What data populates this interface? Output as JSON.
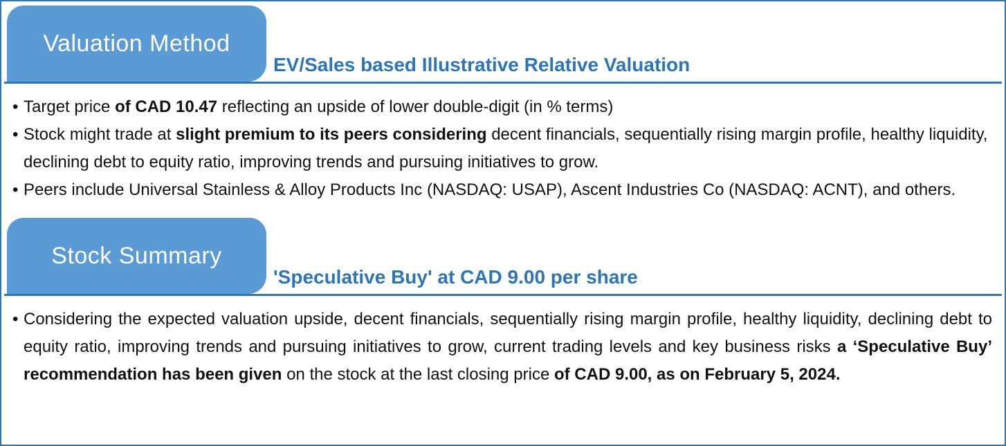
{
  "ui": {
    "bullet_char": "•"
  },
  "colors": {
    "tab_blue": "#5b9bd5",
    "heading_blue": "#2e75b6",
    "border_blue": "#2e75b6",
    "body_text": "#111111"
  },
  "sections": {
    "valuation": {
      "tab_label": "Valuation Method",
      "subtitle": "EV/Sales based Illustrative Relative Valuation",
      "bullets": {
        "b1": {
          "s1": "Target price ",
          "s2": "of CAD 10.47",
          "s3": " reflecting an upside of lower double-digit (in % terms)"
        },
        "b2": {
          "s1": "Stock might trade at ",
          "s2": "slight premium to its peers considering",
          "s3": " decent financials, sequentially rising margin profile, healthy liquidity, declining debt to equity ratio, improving trends and pursuing initiatives to grow."
        },
        "b3": {
          "s1": "Peers include Universal Stainless & Alloy Products Inc (NASDAQ: USAP), Ascent Industries Co (NASDAQ: ACNT), and others."
        }
      }
    },
    "summary": {
      "tab_label": "Stock Summary",
      "subtitle": "'Speculative Buy' at CAD 9.00 per share",
      "bullets": {
        "b1": {
          "s1": "Considering the expected valuation upside, decent financials, sequentially rising margin profile, healthy liquidity, declining debt to equity ratio, improving trends and pursuing initiatives to grow, current trading levels and key business risks ",
          "s2": "a ‘Speculative Buy’ recommendation has been given",
          "s3": " on the stock at the last closing price ",
          "s4": "of CAD 9.00, as on February 5, 2024."
        }
      }
    }
  }
}
